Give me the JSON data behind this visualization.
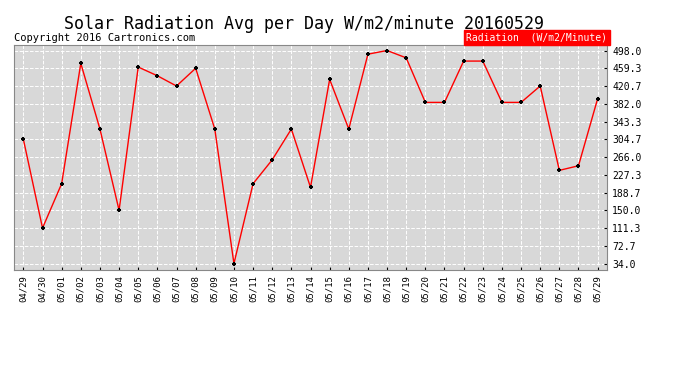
{
  "title": "Solar Radiation Avg per Day W/m2/minute 20160529",
  "copyright": "Copyright 2016 Cartronics.com",
  "legend_label": "Radiation  (W/m2/Minute)",
  "x_labels": [
    "04/29",
    "04/30",
    "05/01",
    "05/02",
    "05/03",
    "05/04",
    "05/05",
    "05/06",
    "05/07",
    "05/08",
    "05/09",
    "05/10",
    "05/11",
    "05/12",
    "05/13",
    "05/14",
    "05/15",
    "05/16",
    "05/17",
    "05/18",
    "05/19",
    "05/20",
    "05/21",
    "05/22",
    "05/23",
    "05/24",
    "05/25",
    "05/26",
    "05/27",
    "05/28",
    "05/29"
  ],
  "y_values": [
    304.7,
    111.3,
    208.0,
    470.0,
    327.0,
    150.0,
    462.0,
    443.0,
    420.7,
    459.3,
    327.0,
    34.0,
    208.0,
    260.0,
    327.0,
    200.0,
    435.0,
    327.0,
    490.0,
    498.0,
    482.0,
    385.0,
    385.0,
    475.0,
    475.0,
    385.0,
    385.0,
    420.7,
    237.0,
    247.0,
    393.0
  ],
  "line_color": "red",
  "marker_color": "black",
  "bg_color": "#ffffff",
  "plot_bg_color": "#d8d8d8",
  "grid_color": "#ffffff",
  "y_ticks": [
    34.0,
    72.7,
    111.3,
    150.0,
    188.7,
    227.3,
    266.0,
    304.7,
    343.3,
    382.0,
    420.7,
    459.3,
    498.0
  ],
  "title_fontsize": 12,
  "copyright_fontsize": 7.5,
  "legend_bg": "red",
  "legend_text_color": "white",
  "ylim_min": 20.0,
  "ylim_max": 510.0
}
